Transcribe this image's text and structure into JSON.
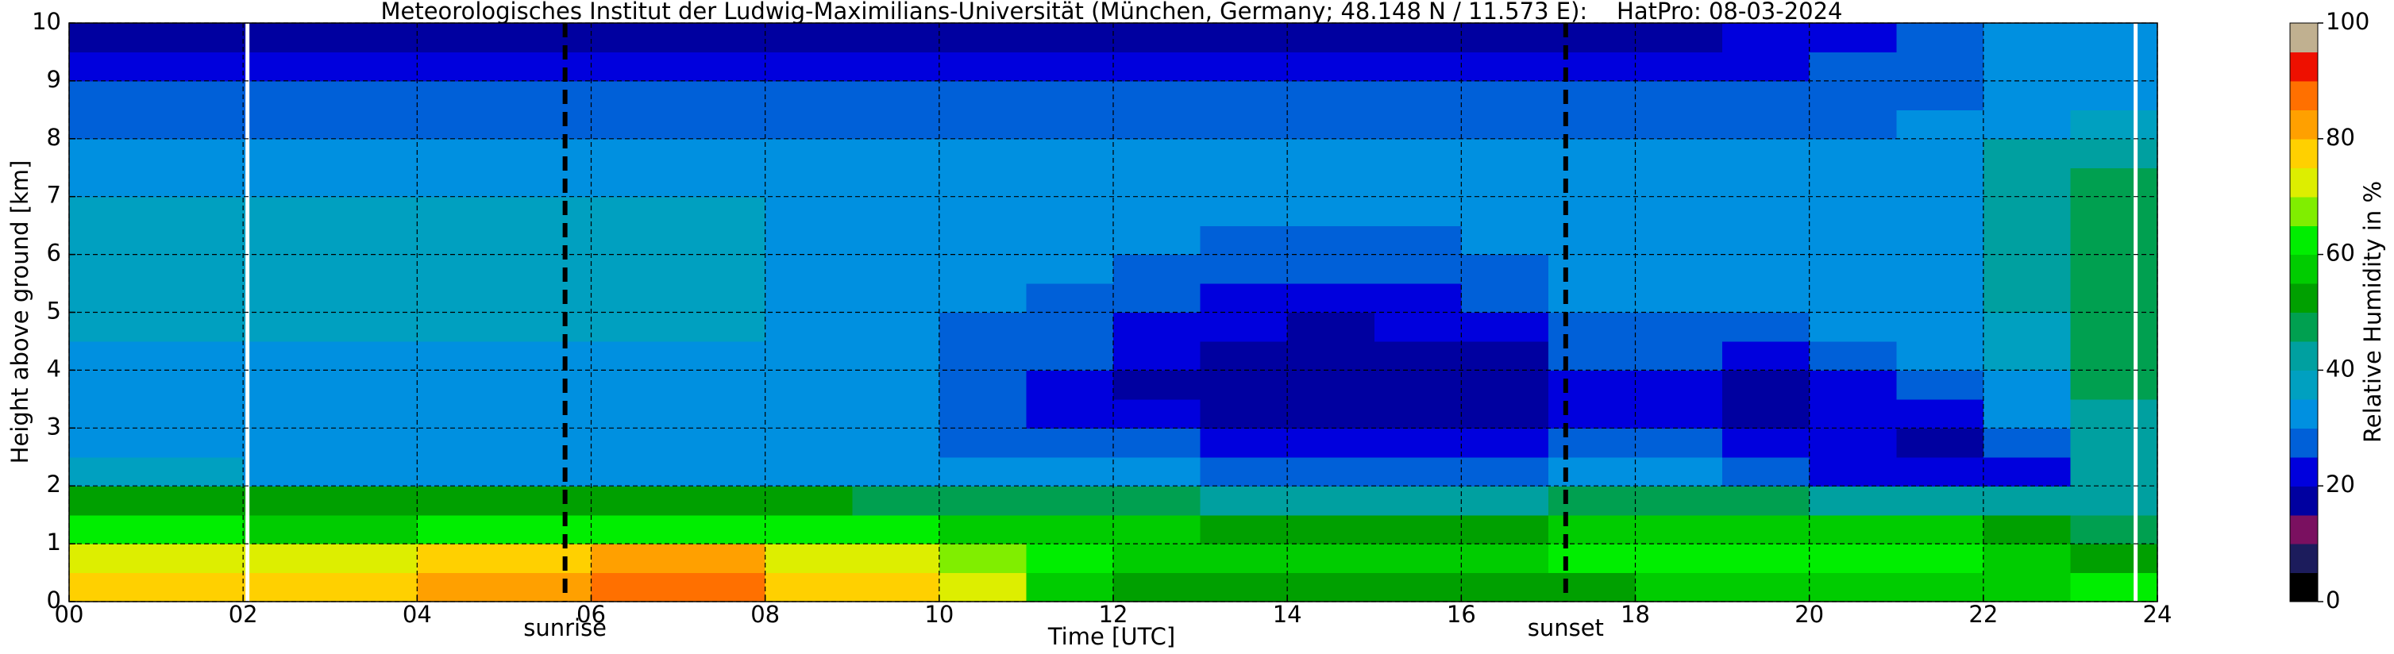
{
  "chart_data": {
    "type": "heatmap",
    "title": "Meteorologisches Institut der Ludwig-Maximilians-Universität (München, Germany; 48.148 N / 11.573 E):    HatPro: 08-03-2024",
    "xlabel": "Time [UTC]",
    "ylabel": "Height above ground [km]",
    "xlim": [
      0,
      24
    ],
    "ylim": [
      0,
      10
    ],
    "xticks": [
      {
        "value": 0,
        "label": "00"
      },
      {
        "value": 2,
        "label": "02"
      },
      {
        "value": 4,
        "label": "04"
      },
      {
        "value": 6,
        "label": "06"
      },
      {
        "value": 8,
        "label": "08"
      },
      10,
      12,
      14,
      16,
      18,
      20,
      22,
      24
    ],
    "yticks": [
      0,
      1,
      2,
      3,
      4,
      5,
      6,
      7,
      8,
      9,
      10
    ],
    "grid": true,
    "xbins": [
      0,
      1,
      2,
      3,
      4,
      5,
      6,
      7,
      8,
      9,
      10,
      11,
      12,
      13,
      14,
      15,
      16,
      17,
      18,
      19,
      20,
      21,
      22,
      23,
      24
    ],
    "ybins": [
      0,
      0.5,
      1,
      1.5,
      2,
      2.5,
      3,
      3.5,
      4,
      4.5,
      5,
      5.5,
      6,
      6.5,
      7,
      7.5,
      8,
      8.5,
      9,
      9.5,
      10
    ],
    "values": [
      [
        78,
        78,
        78,
        78,
        80,
        84,
        88,
        88,
        78,
        76,
        70,
        58,
        52,
        52,
        52,
        52,
        52,
        52,
        55,
        58,
        58,
        55,
        56,
        62
      ],
      [
        72,
        72,
        72,
        72,
        75,
        78,
        80,
        82,
        72,
        70,
        66,
        60,
        58,
        58,
        56,
        56,
        57,
        60,
        62,
        64,
        62,
        60,
        55,
        52
      ],
      [
        60,
        60,
        58,
        58,
        60,
        62,
        64,
        64,
        62,
        60,
        58,
        56,
        55,
        54,
        54,
        54,
        54,
        56,
        58,
        58,
        56,
        56,
        52,
        48
      ],
      [
        52,
        52,
        50,
        50,
        52,
        52,
        54,
        54,
        50,
        48,
        48,
        48,
        46,
        44,
        44,
        44,
        44,
        46,
        48,
        46,
        44,
        42,
        40,
        42
      ],
      [
        36,
        36,
        34,
        34,
        34,
        34,
        34,
        34,
        34,
        34,
        32,
        32,
        30,
        28,
        28,
        28,
        28,
        30,
        30,
        28,
        24,
        22,
        24,
        40
      ],
      [
        32,
        32,
        32,
        32,
        32,
        32,
        32,
        32,
        32,
        30,
        28,
        28,
        26,
        22,
        20,
        20,
        22,
        26,
        26,
        22,
        20,
        18,
        26,
        42
      ],
      [
        32,
        32,
        32,
        32,
        32,
        32,
        32,
        32,
        32,
        30,
        27,
        24,
        20,
        18,
        17,
        17,
        18,
        24,
        22,
        18,
        20,
        22,
        30,
        44
      ],
      [
        33,
        33,
        33,
        33,
        33,
        33,
        33,
        33,
        32,
        30,
        27,
        24,
        19,
        17,
        16,
        16,
        17,
        24,
        22,
        18,
        24,
        26,
        32,
        46
      ],
      [
        34,
        34,
        34,
        34,
        34,
        34,
        34,
        34,
        32,
        30,
        28,
        26,
        22,
        19,
        18,
        18,
        19,
        26,
        26,
        22,
        28,
        30,
        36,
        46
      ],
      [
        35,
        35,
        35,
        35,
        35,
        35,
        35,
        35,
        32,
        30,
        28,
        26,
        22,
        20,
        19,
        20,
        22,
        28,
        28,
        28,
        30,
        32,
        38,
        46
      ],
      [
        36,
        36,
        36,
        36,
        36,
        36,
        36,
        36,
        32,
        30,
        30,
        28,
        26,
        24,
        22,
        24,
        26,
        30,
        30,
        30,
        32,
        34,
        42,
        48
      ],
      [
        37,
        37,
        37,
        37,
        37,
        37,
        37,
        37,
        33,
        31,
        30,
        30,
        28,
        26,
        26,
        28,
        28,
        30,
        30,
        31,
        32,
        34,
        44,
        48
      ],
      [
        37,
        37,
        37,
        37,
        37,
        37,
        37,
        37,
        33,
        31,
        30,
        30,
        30,
        29,
        28,
        29,
        30,
        30,
        30,
        31,
        32,
        34,
        44,
        48
      ],
      [
        36,
        36,
        36,
        36,
        36,
        36,
        36,
        36,
        33,
        31,
        30,
        30,
        30,
        30,
        30,
        30,
        30,
        30,
        30,
        30,
        32,
        34,
        44,
        48
      ],
      [
        34,
        34,
        34,
        34,
        34,
        34,
        34,
        34,
        32,
        30,
        30,
        30,
        30,
        30,
        30,
        30,
        30,
        30,
        30,
        30,
        31,
        33,
        42,
        48
      ],
      [
        32,
        32,
        32,
        32,
        32,
        32,
        32,
        32,
        31,
        30,
        30,
        30,
        30,
        30,
        30,
        30,
        30,
        30,
        30,
        30,
        30,
        32,
        40,
        44
      ],
      [
        29,
        29,
        29,
        29,
        29,
        29,
        29,
        29,
        29,
        29,
        29,
        29,
        29,
        29,
        29,
        29,
        29,
        29,
        29,
        29,
        29,
        30,
        34,
        36
      ],
      [
        25,
        25,
        25,
        25,
        25,
        25,
        25,
        25,
        26,
        26,
        26,
        26,
        27,
        27,
        27,
        27,
        27,
        27,
        27,
        27,
        27,
        28,
        30,
        32
      ],
      [
        20,
        20,
        20,
        20,
        20,
        20,
        20,
        20,
        22,
        22,
        22,
        22,
        22,
        22,
        22,
        22,
        22,
        22,
        22,
        24,
        26,
        28,
        30,
        30
      ],
      [
        18,
        18,
        18,
        18,
        18,
        18,
        18,
        18,
        18,
        18,
        18,
        18,
        18,
        18,
        18,
        18,
        18,
        18,
        18,
        20,
        24,
        28,
        30,
        30
      ]
    ],
    "missing_x": [
      2.05,
      23.75
    ],
    "annotations": [
      {
        "text": "sunrise",
        "x": 5.7
      },
      {
        "text": "sunset",
        "x": 17.2
      }
    ],
    "colorbar": {
      "label": "Relative Humidity in %",
      "lim": [
        0,
        100
      ],
      "ticks": [
        0,
        20,
        40,
        60,
        80,
        100
      ],
      "colors": [
        "#000000",
        "#1c1c5c",
        "#7a1060",
        "#0000a0",
        "#0000dd",
        "#0060d8",
        "#0090e0",
        "#00a0c0",
        "#00a0a0",
        "#00a050",
        "#00a000",
        "#00cc00",
        "#00ee00",
        "#80ee00",
        "#ddee00",
        "#ffd000",
        "#ffa000",
        "#ff7000",
        "#ee1000",
        "#c0b090"
      ]
    }
  }
}
